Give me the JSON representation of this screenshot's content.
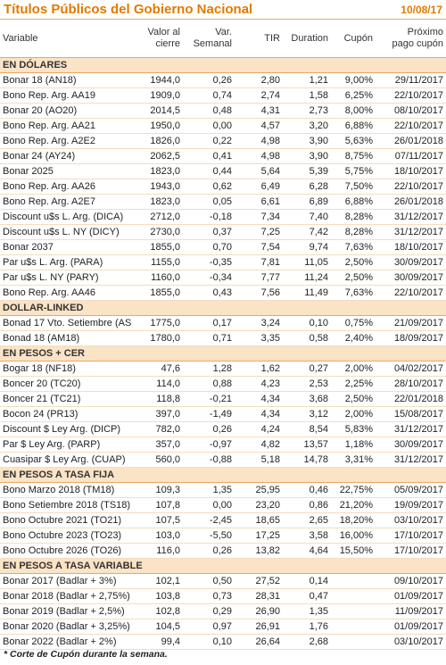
{
  "header": {
    "title": "Títulos Públicos del Gobierno Nacional",
    "date": "10/08/17"
  },
  "columns": [
    "Variable",
    "Valor al\ncierre",
    "Var.\nSemanal",
    "TIR",
    "Duration",
    "Cupón",
    "Próximo\npago cupón"
  ],
  "sections": [
    {
      "title": "EN DÓLARES",
      "rows": [
        [
          "Bonar 18 (AN18)",
          "1944,0",
          "0,26",
          "2,80",
          "1,21",
          "9,00%",
          "29/11/2017"
        ],
        [
          "Bono Rep. Arg. AA19",
          "1909,0",
          "0,74",
          "2,74",
          "1,58",
          "6,25%",
          "22/10/2017"
        ],
        [
          "Bonar 20 (AO20)",
          "2014,5",
          "0,48",
          "4,31",
          "2,73",
          "8,00%",
          "08/10/2017"
        ],
        [
          "Bono Rep. Arg. AA21",
          "1950,0",
          "0,00",
          "4,57",
          "3,20",
          "6,88%",
          "22/10/2017"
        ],
        [
          "Bono Rep. Arg. A2E2",
          "1826,0",
          "0,22",
          "4,98",
          "3,90",
          "5,63%",
          "26/01/2018"
        ],
        [
          "Bonar 24 (AY24)",
          "2062,5",
          "0,41",
          "4,98",
          "3,90",
          "8,75%",
          "07/11/2017"
        ],
        [
          "Bonar 2025",
          "1823,0",
          "0,44",
          "5,64",
          "5,39",
          "5,75%",
          "18/10/2017"
        ],
        [
          "Bono Rep. Arg. AA26",
          "1943,0",
          "0,62",
          "6,49",
          "6,28",
          "7,50%",
          "22/10/2017"
        ],
        [
          "Bono Rep. Arg. A2E7",
          "1823,0",
          "0,05",
          "6,61",
          "6,89",
          "6,88%",
          "26/01/2018"
        ],
        [
          "Discount u$s L. Arg. (DICA)",
          "2712,0",
          "-0,18",
          "7,34",
          "7,40",
          "8,28%",
          "31/12/2017"
        ],
        [
          "Discount u$s L. NY (DICY)",
          "2730,0",
          "0,37",
          "7,25",
          "7,42",
          "8,28%",
          "31/12/2017"
        ],
        [
          "Bonar 2037",
          "1855,0",
          "0,70",
          "7,54",
          "9,74",
          "7,63%",
          "18/10/2017"
        ],
        [
          "Par u$s L. Arg. (PARA)",
          "1155,0",
          "-0,35",
          "7,81",
          "11,05",
          "2,50%",
          "30/09/2017"
        ],
        [
          "Par u$s L. NY (PARY)",
          "1160,0",
          "-0,34",
          "7,77",
          "11,24",
          "2,50%",
          "30/09/2017"
        ],
        [
          "Bono Rep. Arg. AA46",
          "1855,0",
          "0,43",
          "7,56",
          "11,49",
          "7,63%",
          "22/10/2017"
        ]
      ]
    },
    {
      "title": "DOLLAR-LINKED",
      "rows": [
        [
          "Bonad 17 Vto. Setiembre (AS",
          "1775,0",
          "0,17",
          "3,24",
          "0,10",
          "0,75%",
          "21/09/2017"
        ],
        [
          "Bonad 18 (AM18)",
          "1780,0",
          "0,71",
          "3,35",
          "0,58",
          "2,40%",
          "18/09/2017"
        ]
      ]
    },
    {
      "title": "EN PESOS + CER",
      "rows": [
        [
          "Bogar 18 (NF18)",
          "47,6",
          "1,28",
          "1,62",
          "0,27",
          "2,00%",
          "04/02/2017"
        ],
        [
          "Boncer 20 (TC20)",
          "114,0",
          "0,88",
          "4,23",
          "2,53",
          "2,25%",
          "28/10/2017"
        ],
        [
          "Boncer 21 (TC21)",
          "118,8",
          "-0,21",
          "4,34",
          "3,68",
          "2,50%",
          "22/01/2018"
        ],
        [
          "Bocon 24 (PR13)",
          "397,0",
          "-1,49",
          "4,34",
          "3,12",
          "2,00%",
          "15/08/2017"
        ],
        [
          "Discount $ Ley Arg. (DICP)",
          "782,0",
          "0,26",
          "4,24",
          "8,54",
          "5,83%",
          "31/12/2017"
        ],
        [
          "Par $ Ley Arg. (PARP)",
          "357,0",
          "-0,97",
          "4,82",
          "13,57",
          "1,18%",
          "30/09/2017"
        ],
        [
          "Cuasipar $ Ley Arg. (CUAP)",
          "560,0",
          "-0,88",
          "5,18",
          "14,78",
          "3,31%",
          "31/12/2017"
        ]
      ]
    },
    {
      "title": "EN PESOS A TASA FIJA",
      "rows": [
        [
          "Bono Marzo 2018 (TM18)",
          "109,3",
          "1,35",
          "25,95",
          "0,46",
          "22,75%",
          "05/09/2017"
        ],
        [
          "Bono Setiembre 2018 (TS18)",
          "107,8",
          "0,00",
          "23,20",
          "0,86",
          "21,20%",
          "19/09/2017"
        ],
        [
          "Bono Octubre 2021 (TO21)",
          "107,5",
          "-2,45",
          "18,65",
          "2,65",
          "18,20%",
          "03/10/2017"
        ],
        [
          "Bono Octubre 2023 (TO23)",
          "103,0",
          "-5,50",
          "17,25",
          "3,58",
          "16,00%",
          "17/10/2017"
        ],
        [
          "Bono Octubre 2026 (TO26)",
          "116,0",
          "0,26",
          "13,82",
          "4,64",
          "15,50%",
          "17/10/2017"
        ]
      ]
    },
    {
      "title": "EN PESOS A TASA VARIABLE",
      "rows": [
        [
          "Bonar 2017 (Badlar + 3%)",
          "102,1",
          "0,50",
          "27,52",
          "0,14",
          null,
          "09/10/2017"
        ],
        [
          "Bonar 2018 (Badlar + 2,75%)",
          "103,8",
          "0,73",
          "28,31",
          "0,47",
          null,
          "01/09/2017"
        ],
        [
          "Bonar 2019 (Badlar + 2,5%)",
          "102,8",
          "0,29",
          "26,90",
          "1,35",
          null,
          "11/09/2017"
        ],
        [
          "Bonar 2020 (Badlar + 3,25%)",
          "104,5",
          "0,97",
          "26,91",
          "1,76",
          null,
          "01/09/2017"
        ],
        [
          "Bonar 2022 (Badlar + 2%)",
          "99,4",
          "0,10",
          "26,64",
          "2,68",
          null,
          "03/10/2017"
        ]
      ]
    }
  ],
  "footnote": "* Corte de Cupón durante la semana."
}
